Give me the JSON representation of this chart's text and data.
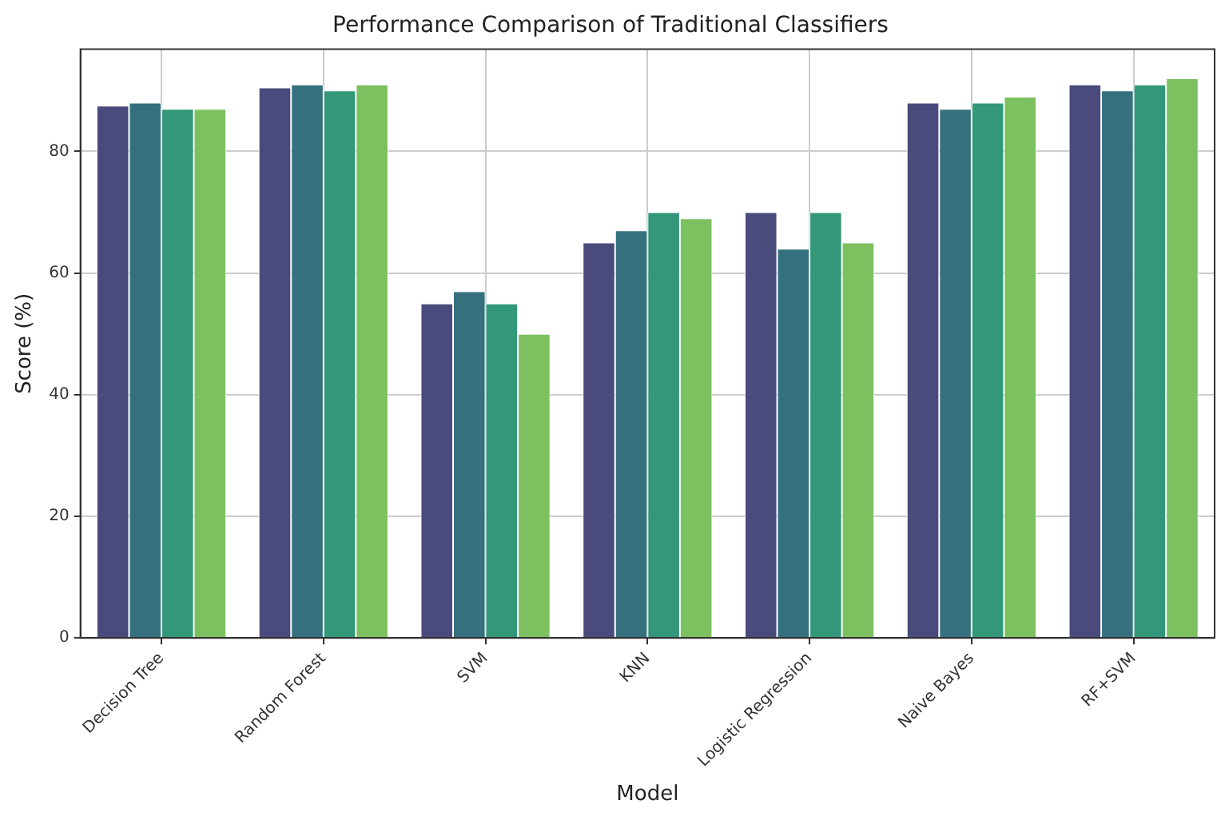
{
  "chart_data": {
    "type": "bar",
    "title": "Performance Comparison of Traditional Classifiers",
    "xlabel": "Model",
    "ylabel": "Score (%)",
    "categories": [
      "Decision Tree",
      "Random Forest",
      "SVM",
      "KNN",
      "Logistic Regression",
      "Naive Bayes",
      "RF+SVM"
    ],
    "series": [
      {
        "color": "#4a4a7c",
        "values": [
          87.5,
          90.5,
          55,
          65,
          70,
          88,
          91
        ]
      },
      {
        "color": "#35707e",
        "values": [
          88,
          91,
          57,
          67,
          64,
          87,
          90
        ]
      },
      {
        "color": "#33977a",
        "values": [
          87,
          90,
          55,
          70,
          70,
          88,
          91
        ]
      },
      {
        "color": "#7dc060",
        "values": [
          87,
          91,
          50,
          69,
          65,
          89,
          92
        ]
      }
    ],
    "ylim": [
      0,
      96.8
    ],
    "yticks": [
      0,
      20,
      40,
      60,
      80
    ],
    "grid": true
  }
}
